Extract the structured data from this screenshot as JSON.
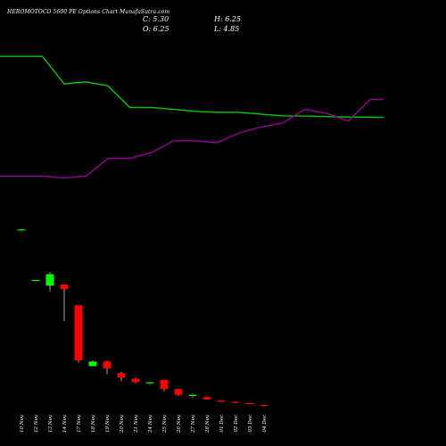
{
  "header": {
    "title": "HEROMOTOCO 5600 PE Options Chart MunafaSutra.com",
    "close_text": "C: 5.30",
    "open_text": "O: 6.25",
    "high_text": "H: 6.25",
    "low_text": "L: 4.85"
  },
  "colors": {
    "background": "#000000",
    "up": "#00ff00",
    "down": "#ff0000",
    "line_green": "#00cc00",
    "line_magenta": "#990099",
    "text": "#ffffff"
  },
  "chart_data": {
    "type": "candlestick",
    "title": "HEROMOTOCO 5600 PE Options Chart MunafaSutra.com",
    "categories": [
      "10 Nov",
      "12 Nov",
      "13 Nov",
      "14 Nov",
      "17 Nov",
      "18 Nov",
      "19 Nov",
      "20 Nov",
      "21 Nov",
      "24 Nov",
      "25 Nov",
      "26 Nov",
      "27 Nov",
      "28 Nov",
      "01 Dec",
      "02 Dec",
      "03 Dec",
      "04 Dec"
    ],
    "ohlc": [
      {
        "date": "10 Nov",
        "open": 159.0,
        "high": 159.0,
        "low": 159.0,
        "close": 159.0
      },
      {
        "date": "12 Nov",
        "open": 115.0,
        "high": 115.0,
        "low": 115.0,
        "close": 115.0
      },
      {
        "date": "13 Nov",
        "open": 110.0,
        "high": 122.0,
        "low": 105.0,
        "close": 120.0
      },
      {
        "date": "14 Nov",
        "open": 111.0,
        "high": 111.0,
        "low": 79.0,
        "close": 107.0
      },
      {
        "date": "17 Nov",
        "open": 93.0,
        "high": 93.0,
        "low": 43.0,
        "close": 45.0
      },
      {
        "date": "18 Nov",
        "open": 40.0,
        "high": 45.0,
        "low": 40.0,
        "close": 44.0
      },
      {
        "date": "19 Nov",
        "open": 44.0,
        "high": 45.0,
        "low": 33.0,
        "close": 38.0
      },
      {
        "date": "20 Nov",
        "open": 34.0,
        "high": 35.0,
        "low": 27.0,
        "close": 30.0
      },
      {
        "date": "21 Nov",
        "open": 29.0,
        "high": 30.0,
        "low": 25.0,
        "close": 26.0
      },
      {
        "date": "24 Nov",
        "open": 26.0,
        "high": 26.0,
        "low": 24.0,
        "close": 26.0
      },
      {
        "date": "25 Nov",
        "open": 28.0,
        "high": 28.0,
        "low": 18.0,
        "close": 20.0
      },
      {
        "date": "26 Nov",
        "open": 20.0,
        "high": 20.0,
        "low": 14.0,
        "close": 15.0
      },
      {
        "date": "27 Nov",
        "open": 14.0,
        "high": 16.0,
        "low": 13.0,
        "close": 15.0
      },
      {
        "date": "28 Nov",
        "open": 13.0,
        "high": 13.0,
        "low": 11.0,
        "close": 11.0
      },
      {
        "date": "01 Dec",
        "open": 10.0,
        "high": 10.0,
        "low": 9.0,
        "close": 9.0
      },
      {
        "date": "02 Dec",
        "open": 9.0,
        "high": 9.0,
        "low": 8.0,
        "close": 8.0
      },
      {
        "date": "03 Dec",
        "open": 8.0,
        "high": 8.0,
        "low": 7.0,
        "close": 7.0
      },
      {
        "date": "04 Dec",
        "open": 6.25,
        "high": 6.25,
        "low": 4.85,
        "close": 5.3
      }
    ],
    "overlay_lines": [
      {
        "color": "#00cc00",
        "values": [
          94,
          94,
          80,
          81,
          79,
          68,
          68,
          67,
          66,
          65.5,
          65.5,
          64.6,
          63.7,
          63.6,
          63.3,
          63.1,
          63.0,
          62.9
        ]
      },
      {
        "color": "#990099",
        "values": [
          33,
          33,
          32,
          33,
          42,
          42,
          45,
          51,
          51,
          50,
          55,
          58,
          60,
          67,
          65,
          61,
          72,
          72
        ]
      }
    ],
    "ylim": [
      0,
      163
    ],
    "overlay_ylim": [
      0,
      100
    ],
    "grid": false,
    "legend": "none"
  }
}
